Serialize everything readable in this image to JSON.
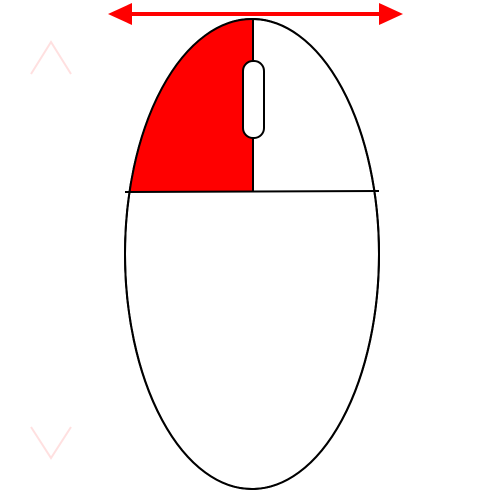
{
  "mouse": {
    "highlighted_part": "left-button",
    "highlight_color": "#ff0000",
    "outline_color": "#000000",
    "body_color": "#ffffff"
  },
  "drag_arrow": {
    "direction": "horizontal-bidirectional",
    "color": "#ff0000"
  },
  "scroll_hints": {
    "up_icon": "chevron-up-icon",
    "down_icon": "chevron-down-icon",
    "color": "#ffe0e0"
  }
}
